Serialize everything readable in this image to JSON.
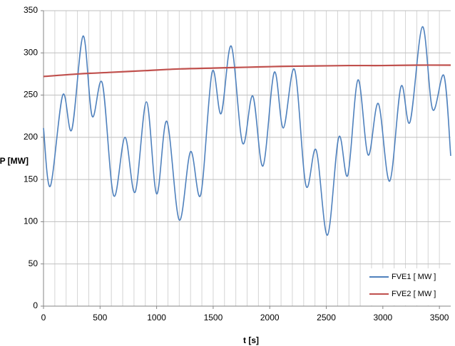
{
  "chart_data": {
    "type": "line",
    "title": "",
    "xlabel": "t [s]",
    "ylabel": "P [MW]",
    "xlim": [
      0,
      3600
    ],
    "ylim": [
      0,
      350
    ],
    "xticks": [
      0,
      500,
      1000,
      1500,
      2000,
      2500,
      3000,
      3500
    ],
    "yticks": [
      0,
      50,
      100,
      150,
      200,
      250,
      300,
      350
    ],
    "x_minor_grid_step": 100,
    "grid": true,
    "legend_position": "bottom-right",
    "series": [
      {
        "name": "FVE1 [ MW ]",
        "color": "#4F81BD",
        "x": [
          0,
          60,
          170,
          250,
          350,
          430,
          520,
          620,
          720,
          810,
          910,
          1000,
          1090,
          1200,
          1300,
          1390,
          1490,
          1570,
          1660,
          1760,
          1850,
          1940,
          2040,
          2120,
          2220,
          2320,
          2410,
          2510,
          2610,
          2690,
          2780,
          2870,
          2960,
          3060,
          3160,
          3240,
          3350,
          3440,
          3540,
          3600
        ],
        "values": [
          211,
          142,
          250,
          209,
          320,
          225,
          264,
          131,
          200,
          135,
          242,
          133,
          219,
          102,
          183,
          132,
          277,
          228,
          308,
          193,
          249,
          166,
          277,
          211,
          280,
          143,
          185,
          84,
          200,
          155,
          268,
          179,
          240,
          148,
          260,
          218,
          331,
          233,
          273,
          178
        ]
      },
      {
        "name": "FVE2 [ MW ]",
        "color": "#C0504D",
        "x": [
          0,
          300,
          600,
          900,
          1200,
          1500,
          1800,
          2100,
          2400,
          2700,
          3000,
          3300,
          3600
        ],
        "values": [
          272,
          275,
          277,
          279,
          281,
          282,
          283,
          284,
          284.5,
          285,
          285,
          285.5,
          285.5
        ]
      }
    ]
  }
}
